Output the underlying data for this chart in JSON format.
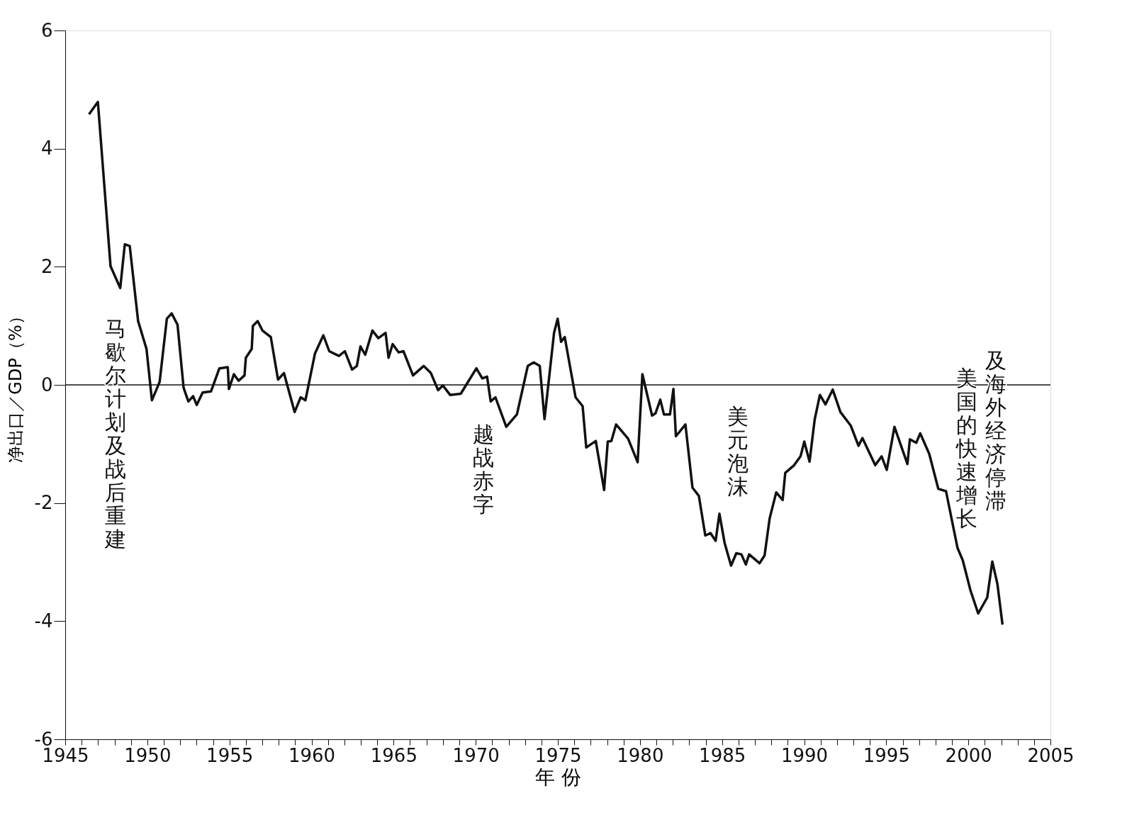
{
  "chart_data": {
    "type": "line",
    "xlabel": "年 份",
    "ylabel": "净出口／GDP（%）",
    "xlim": [
      1945,
      2005
    ],
    "ylim": [
      -6,
      6
    ],
    "xticks": [
      1945,
      {
        "value": 1946,
        "label": null
      },
      {
        "value": 1947,
        "label": null
      },
      {
        "value": 1948,
        "label": null
      },
      {
        "value": 1949,
        "label": null
      },
      1950,
      {
        "value": 1951,
        "label": null
      },
      {
        "value": 1952,
        "label": null
      },
      {
        "value": 1953,
        "label": null
      },
      {
        "value": 1954,
        "label": null
      },
      1955,
      {
        "value": 1956,
        "label": null
      },
      {
        "value": 1957,
        "label": null
      },
      {
        "value": 1958,
        "label": null
      },
      {
        "value": 1959,
        "label": null
      },
      1960,
      {
        "value": 1961,
        "label": null
      },
      {
        "value": 1962,
        "label": null
      },
      {
        "value": 1963,
        "label": null
      },
      {
        "value": 1964,
        "label": null
      },
      1965,
      {
        "value": 1966,
        "label": null
      },
      {
        "value": 1967,
        "label": null
      },
      {
        "value": 1968,
        "label": null
      },
      {
        "value": 1969,
        "label": null
      },
      1970,
      {
        "value": 1971,
        "label": null
      },
      {
        "value": 1972,
        "label": null
      },
      {
        "value": 1973,
        "label": null
      },
      {
        "value": 1974,
        "label": null
      },
      1975,
      {
        "value": 1976,
        "label": null
      },
      {
        "value": 1977,
        "label": null
      },
      {
        "value": 1978,
        "label": null
      },
      {
        "value": 1979,
        "label": null
      },
      1980,
      {
        "value": 1981,
        "label": null
      },
      {
        "value": 1982,
        "label": null
      },
      {
        "value": 1983,
        "label": null
      },
      {
        "value": 1984,
        "label": null
      },
      1985,
      {
        "value": 1986,
        "label": null
      },
      {
        "value": 1987,
        "label": null
      },
      {
        "value": 1988,
        "label": null
      },
      {
        "value": 1989,
        "label": null
      },
      1990,
      {
        "value": 1991,
        "label": null
      },
      {
        "value": 1992,
        "label": null
      },
      {
        "value": 1993,
        "label": null
      },
      {
        "value": 1994,
        "label": null
      },
      1995,
      {
        "value": 1996,
        "label": null
      },
      {
        "value": 1997,
        "label": null
      },
      {
        "value": 1998,
        "label": null
      },
      {
        "value": 1999,
        "label": null
      },
      2000,
      {
        "value": 2001,
        "label": null
      },
      {
        "value": 2002,
        "label": null
      },
      {
        "value": 2003,
        "label": null
      },
      {
        "value": 2004,
        "label": null
      },
      2005
    ],
    "yticks": [
      -6,
      -4,
      -2,
      0,
      2,
      4,
      6
    ],
    "grid": false,
    "marker": "none",
    "line_style": "solid",
    "x": [
      1946.45,
      1946.99,
      1947.76,
      1948.35,
      1948.63,
      1948.93,
      1949.44,
      1949.95,
      1950.28,
      1950.75,
      1951.19,
      1951.48,
      1951.84,
      1952.21,
      1952.5,
      1952.79,
      1953.01,
      1953.37,
      1953.88,
      1954.39,
      1954.9,
      1954.97,
      1955.27,
      1955.56,
      1955.92,
      1956.0,
      1956.36,
      1956.43,
      1956.72,
      1957.01,
      1957.52,
      1957.96,
      1958.32,
      1958.97,
      1959.34,
      1959.63,
      1960.21,
      1960.72,
      1961.08,
      1961.67,
      1962.03,
      1962.47,
      1962.76,
      1962.98,
      1963.27,
      1963.71,
      1964.07,
      1964.51,
      1964.69,
      1964.94,
      1965.31,
      1965.6,
      1966.18,
      1966.83,
      1967.27,
      1967.71,
      1968.0,
      1968.44,
      1969.09,
      1970.04,
      1970.4,
      1970.69,
      1970.91,
      1971.2,
      1971.86,
      1972.51,
      1973.17,
      1973.53,
      1973.9,
      1974.19,
      1974.77,
      1974.99,
      1975.2,
      1975.42,
      1976.08,
      1976.51,
      1976.73,
      1977.31,
      1977.82,
      1978.04,
      1978.26,
      1978.55,
      1979.28,
      1979.86,
      1980.15,
      1980.74,
      1980.95,
      1981.24,
      1981.46,
      1981.83,
      1982.04,
      1982.19,
      1982.77,
      1983.2,
      1983.59,
      1983.98,
      1984.3,
      1984.61,
      1984.84,
      1985.16,
      1985.55,
      1985.87,
      1986.18,
      1986.45,
      1986.65,
      1987.28,
      1987.59,
      1987.9,
      1988.3,
      1988.69,
      1988.85,
      1989.39,
      1989.78,
      1990.01,
      1990.33,
      1990.64,
      1990.96,
      1991.3,
      1991.74,
      1992.21,
      1992.84,
      1993.31,
      1993.55,
      1994.33,
      1994.72,
      1995.03,
      1995.5,
      1996.29,
      1996.44,
      1996.83,
      1997.07,
      1997.62,
      1998.17,
      1998.64,
      1999.34,
      1999.66,
      2000.13,
      2000.6,
      2001.15,
      2001.46,
      2001.77,
      2002.08
    ],
    "series": [
      {
        "color": "#111111",
        "values": [
          4.58,
          4.79,
          2.01,
          1.64,
          2.38,
          2.35,
          1.08,
          0.61,
          -0.26,
          0.05,
          1.12,
          1.21,
          1.02,
          -0.05,
          -0.28,
          -0.19,
          -0.34,
          -0.13,
          -0.11,
          0.28,
          0.3,
          -0.07,
          0.18,
          0.07,
          0.16,
          0.46,
          0.61,
          1.0,
          1.08,
          0.92,
          0.81,
          0.09,
          0.2,
          -0.46,
          -0.21,
          -0.26,
          0.53,
          0.84,
          0.57,
          0.49,
          0.57,
          0.26,
          0.32,
          0.65,
          0.51,
          0.92,
          0.79,
          0.88,
          0.46,
          0.69,
          0.55,
          0.57,
          0.16,
          0.32,
          0.2,
          -0.09,
          -0.01,
          -0.17,
          -0.15,
          0.28,
          0.11,
          0.14,
          -0.28,
          -0.21,
          -0.71,
          -0.5,
          0.32,
          0.38,
          0.32,
          -0.58,
          0.88,
          1.12,
          0.73,
          0.81,
          -0.21,
          -0.36,
          -1.06,
          -0.95,
          -1.78,
          -0.96,
          -0.95,
          -0.67,
          -0.91,
          -1.31,
          0.18,
          -0.52,
          -0.48,
          -0.25,
          -0.5,
          -0.5,
          -0.07,
          -0.87,
          -0.67,
          -1.74,
          -1.88,
          -2.55,
          -2.51,
          -2.64,
          -2.18,
          -2.68,
          -3.06,
          -2.85,
          -2.87,
          -3.04,
          -2.87,
          -3.02,
          -2.89,
          -2.26,
          -1.82,
          -1.95,
          -1.49,
          -1.36,
          -1.21,
          -0.96,
          -1.3,
          -0.59,
          -0.17,
          -0.33,
          -0.08,
          -0.46,
          -0.69,
          -1.03,
          -0.9,
          -1.36,
          -1.21,
          -1.44,
          -0.71,
          -1.34,
          -0.92,
          -0.98,
          -0.82,
          -1.17,
          -1.76,
          -1.8,
          -2.76,
          -2.97,
          -3.48,
          -3.87,
          -3.6,
          -2.99,
          -3.37,
          -4.06
        ]
      }
    ],
    "ref_lines": [
      {
        "axis": "y",
        "value": 0,
        "label": null,
        "color": "#111111"
      }
    ],
    "annotations": [
      "马歇尔计划及战后重建",
      "越战赤字",
      "美元泡沫",
      "美国的快速增长",
      "及海外经济停滞"
    ]
  }
}
